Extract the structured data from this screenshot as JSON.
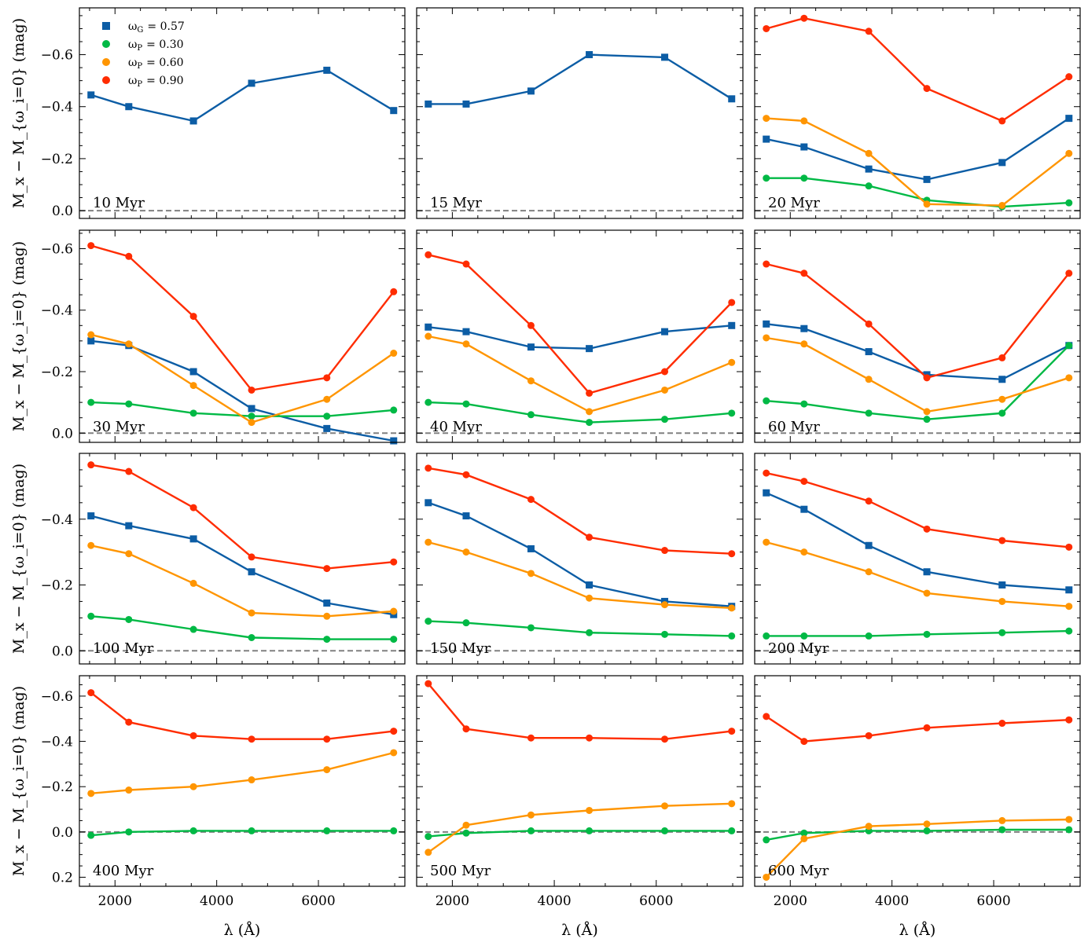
{
  "chart_data": {
    "type": "line",
    "xlabel": "λ (Å)",
    "ylabel": "M_x − M_{ω_i=0} (mag)",
    "x": [
      1528,
      2271,
      3543,
      4686,
      6166,
      7480
    ],
    "xlim": [
      1300,
      7700
    ],
    "xticks": [
      2000,
      4000,
      6000
    ],
    "yaxis_inverted": true,
    "series_styles": [
      {
        "key": "G57",
        "name": "ωG = 0.57",
        "color": "#0C5DA5",
        "marker": "square"
      },
      {
        "key": "P30",
        "name": "ωP = 0.30",
        "color": "#00B945",
        "marker": "circle"
      },
      {
        "key": "P60",
        "name": "ωP = 0.60",
        "color": "#FF9500",
        "marker": "circle"
      },
      {
        "key": "P90",
        "name": "ωP = 0.90",
        "color": "#FF2C00",
        "marker": "circle"
      }
    ],
    "legend": {
      "placement": "top-left",
      "entries": [
        {
          "label": "ω",
          "sub": "G",
          "value": "= 0.57"
        },
        {
          "label": "ω",
          "sub": "P",
          "value": "= 0.30"
        },
        {
          "label": "ω",
          "sub": "P",
          "value": "= 0.60"
        },
        {
          "label": "ω",
          "sub": "P",
          "value": "= 0.90"
        }
      ]
    },
    "rows": [
      {
        "ylim": [
          0.03,
          -0.78
        ],
        "yticks": [
          0.0,
          -0.2,
          -0.4,
          -0.6
        ],
        "ytick_labels": [
          "0.0",
          "−0.2",
          "−0.4",
          "−0.6"
        ]
      },
      {
        "ylim": [
          0.03,
          -0.66
        ],
        "yticks": [
          0.0,
          -0.2,
          -0.4,
          -0.6
        ],
        "ytick_labels": [
          "0.0",
          "−0.2",
          "−0.4",
          "−0.6"
        ]
      },
      {
        "ylim": [
          0.04,
          -0.6
        ],
        "yticks": [
          0.0,
          -0.2,
          -0.4
        ],
        "ytick_labels": [
          "0.0",
          "−0.2",
          "−0.4"
        ]
      },
      {
        "ylim": [
          0.24,
          -0.69
        ],
        "yticks": [
          0.2,
          0.0,
          -0.2,
          -0.4,
          -0.6
        ],
        "ytick_labels": [
          "0.2",
          "0.0",
          "−0.2",
          "−0.4",
          "−0.6"
        ]
      }
    ],
    "panels": [
      {
        "label": "10 Myr",
        "series": {
          "G57": [
            -0.445,
            -0.4,
            -0.345,
            -0.49,
            -0.54,
            -0.385
          ]
        }
      },
      {
        "label": "15 Myr",
        "series": {
          "G57": [
            -0.41,
            -0.41,
            -0.46,
            -0.6,
            -0.59,
            -0.43
          ]
        }
      },
      {
        "label": "20 Myr",
        "series": {
          "G57": [
            -0.275,
            -0.245,
            -0.16,
            -0.12,
            -0.185,
            -0.355
          ],
          "P30": [
            -0.125,
            -0.125,
            -0.095,
            -0.04,
            -0.015,
            -0.03
          ],
          "P60": [
            -0.355,
            -0.345,
            -0.22,
            -0.025,
            -0.02,
            -0.22
          ],
          "P90": [
            -0.7,
            -0.74,
            -0.69,
            -0.47,
            -0.345,
            -0.515
          ]
        }
      },
      {
        "label": "30 Myr",
        "series": {
          "G57": [
            -0.3,
            -0.285,
            -0.2,
            -0.08,
            -0.015,
            0.025
          ],
          "P30": [
            -0.1,
            -0.095,
            -0.065,
            -0.055,
            -0.055,
            -0.075
          ],
          "P60": [
            -0.32,
            -0.29,
            -0.155,
            -0.035,
            -0.11,
            -0.26
          ],
          "P90": [
            -0.61,
            -0.575,
            -0.38,
            -0.14,
            -0.18,
            -0.46
          ]
        }
      },
      {
        "label": "40 Myr",
        "series": {
          "G57": [
            -0.345,
            -0.33,
            -0.28,
            -0.275,
            -0.33,
            -0.35
          ],
          "P30": [
            -0.1,
            -0.095,
            -0.06,
            -0.035,
            -0.045,
            -0.065
          ],
          "P60": [
            -0.315,
            -0.29,
            -0.17,
            -0.07,
            -0.14,
            -0.23
          ],
          "P90": [
            -0.58,
            -0.55,
            -0.35,
            -0.13,
            -0.2,
            -0.425
          ]
        }
      },
      {
        "label": "60 Myr",
        "series": {
          "G57": [
            -0.355,
            -0.34,
            -0.265,
            -0.19,
            -0.175,
            -0.285
          ],
          "P30": [
            -0.105,
            -0.095,
            -0.065,
            -0.045,
            -0.065,
            -0.285
          ],
          "P60": [
            -0.31,
            -0.29,
            -0.175,
            -0.07,
            -0.11,
            -0.18
          ],
          "P90": [
            -0.55,
            -0.52,
            -0.355,
            -0.18,
            -0.245,
            -0.52
          ]
        }
      },
      {
        "label": "100 Myr",
        "series": {
          "G57": [
            -0.41,
            -0.38,
            -0.34,
            -0.24,
            -0.145,
            -0.11
          ],
          "P30": [
            -0.105,
            -0.095,
            -0.065,
            -0.04,
            -0.035,
            -0.035
          ],
          "P60": [
            -0.32,
            -0.295,
            -0.205,
            -0.115,
            -0.105,
            -0.12
          ],
          "P90": [
            -0.565,
            -0.545,
            -0.435,
            -0.285,
            -0.25,
            -0.27
          ]
        }
      },
      {
        "label": "150 Myr",
        "series": {
          "G57": [
            -0.45,
            -0.41,
            -0.31,
            -0.2,
            -0.15,
            -0.135
          ],
          "P30": [
            -0.09,
            -0.085,
            -0.07,
            -0.055,
            -0.05,
            -0.045
          ],
          "P60": [
            -0.33,
            -0.3,
            -0.235,
            -0.16,
            -0.14,
            -0.13
          ],
          "P90": [
            -0.555,
            -0.535,
            -0.46,
            -0.345,
            -0.305,
            -0.295
          ]
        }
      },
      {
        "label": "200 Myr",
        "series": {
          "G57": [
            -0.48,
            -0.43,
            -0.32,
            -0.24,
            -0.2,
            -0.185
          ],
          "P30": [
            -0.045,
            -0.045,
            -0.045,
            -0.05,
            -0.055,
            -0.06
          ],
          "P60": [
            -0.33,
            -0.3,
            -0.24,
            -0.175,
            -0.15,
            -0.135
          ],
          "P90": [
            -0.54,
            -0.515,
            -0.455,
            -0.37,
            -0.335,
            -0.315
          ]
        }
      },
      {
        "label": "400 Myr",
        "series": {
          "P30": [
            0.015,
            0.0,
            -0.005,
            -0.005,
            -0.005,
            -0.005
          ],
          "P60": [
            -0.17,
            -0.185,
            -0.2,
            -0.23,
            -0.275,
            -0.35
          ],
          "P90": [
            -0.615,
            -0.485,
            -0.425,
            -0.41,
            -0.41,
            -0.445
          ]
        }
      },
      {
        "label": "500 Myr",
        "series": {
          "P30": [
            0.02,
            0.005,
            -0.005,
            -0.005,
            -0.005,
            -0.005
          ],
          "P60": [
            0.09,
            -0.03,
            -0.075,
            -0.095,
            -0.115,
            -0.125
          ],
          "P90": [
            -0.655,
            -0.455,
            -0.415,
            -0.415,
            -0.41,
            -0.445
          ]
        }
      },
      {
        "label": "600 Myr",
        "series": {
          "P30": [
            0.035,
            0.005,
            -0.005,
            -0.005,
            -0.01,
            -0.01
          ],
          "P60": [
            0.2,
            0.03,
            -0.025,
            -0.035,
            -0.05,
            -0.055
          ],
          "P90": [
            -0.51,
            -0.4,
            -0.425,
            -0.46,
            -0.48,
            -0.495
          ]
        }
      }
    ]
  }
}
